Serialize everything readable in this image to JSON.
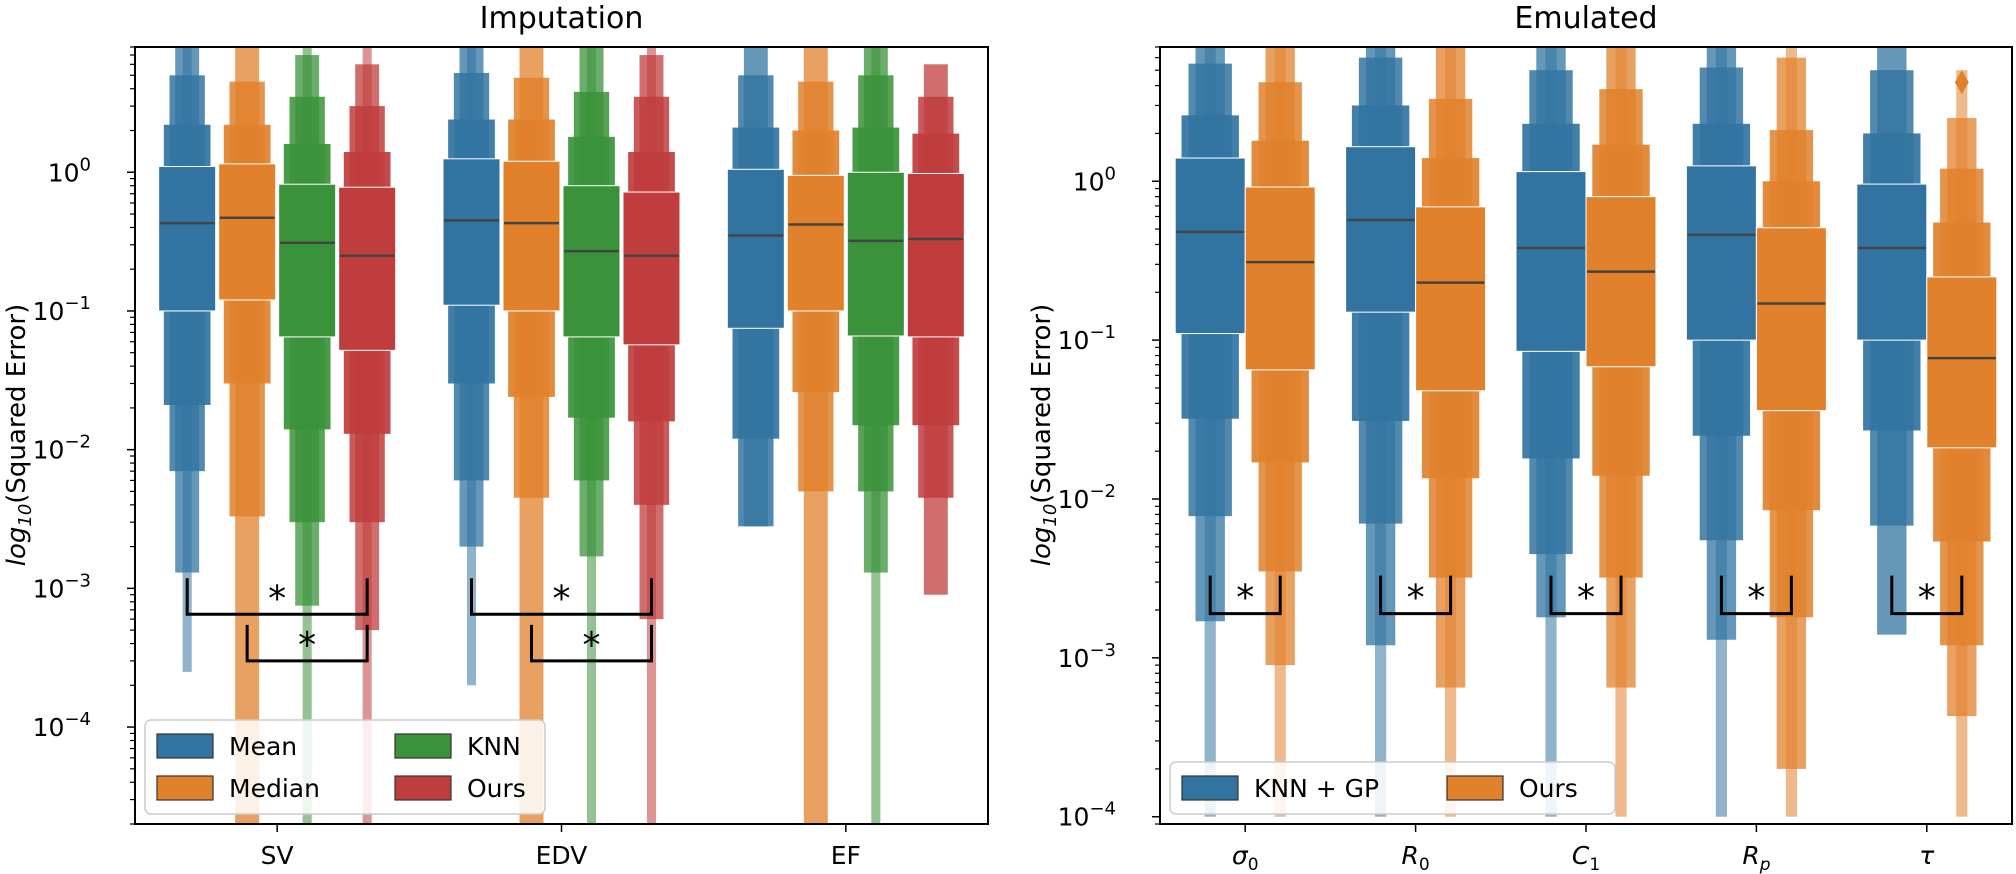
{
  "chart_data": [
    {
      "type": "boxen",
      "title": "Imputation",
      "ylabel": "log10(Squared Error)",
      "yscale": "log",
      "ylim": [
        2e-05,
        8
      ],
      "yticks": [
        {
          "value": 1,
          "exp": "0"
        },
        {
          "value": 0.1,
          "exp": "−1"
        },
        {
          "value": 0.01,
          "exp": "−2"
        },
        {
          "value": 0.001,
          "exp": "−3"
        },
        {
          "value": 0.0001,
          "exp": "−4"
        }
      ],
      "categories": [
        "SV",
        "EDV",
        "EF"
      ],
      "series": [
        {
          "name": "Mean",
          "color": "#3274a1",
          "boxes": [
            {
              "median": 0.43,
              "levels": [
                [
                  0.1,
                  1.1
                ],
                [
                  0.021,
                  2.2
                ],
                [
                  0.007,
                  5.0
                ],
                [
                  0.0013,
                  10
                ],
                [
                  0.00025,
                  10
                ]
              ]
            },
            {
              "median": 0.45,
              "levels": [
                [
                  0.11,
                  1.25
                ],
                [
                  0.03,
                  2.4
                ],
                [
                  0.006,
                  5.2
                ],
                [
                  0.002,
                  10
                ],
                [
                  0.0002,
                  10
                ]
              ]
            },
            {
              "median": 0.35,
              "levels": [
                [
                  0.075,
                  1.05
                ],
                [
                  0.012,
                  2.1
                ],
                [
                  0.0028,
                  5.0
                ],
                [
                  0.0028,
                  10
                ]
              ]
            }
          ]
        },
        {
          "name": "Median",
          "color": "#e1812c",
          "boxes": [
            {
              "median": 0.47,
              "levels": [
                [
                  0.12,
                  1.15
                ],
                [
                  0.03,
                  2.2
                ],
                [
                  0.0033,
                  4.5
                ],
                [
                  2e-05,
                  10
                ]
              ]
            },
            {
              "median": 0.43,
              "levels": [
                [
                  0.1,
                  1.2
                ],
                [
                  0.024,
                  2.4
                ],
                [
                  0.0045,
                  4.8
                ],
                [
                  2e-05,
                  10
                ]
              ]
            },
            {
              "median": 0.42,
              "levels": [
                [
                  0.1,
                  0.95
                ],
                [
                  0.026,
                  2.0
                ],
                [
                  0.005,
                  4.5
                ],
                [
                  2e-05,
                  10
                ]
              ]
            }
          ]
        },
        {
          "name": "KNN",
          "color": "#3a923a",
          "boxes": [
            {
              "median": 0.31,
              "levels": [
                [
                  0.065,
                  0.82
                ],
                [
                  0.014,
                  1.6
                ],
                [
                  0.003,
                  3.5
                ],
                [
                  0.00075,
                  7
                ],
                [
                  2e-05,
                  10
                ]
              ]
            },
            {
              "median": 0.27,
              "levels": [
                [
                  0.065,
                  0.8
                ],
                [
                  0.017,
                  1.8
                ],
                [
                  0.006,
                  3.8
                ],
                [
                  0.0017,
                  8
                ],
                [
                  2e-05,
                  10
                ]
              ]
            },
            {
              "median": 0.32,
              "levels": [
                [
                  0.066,
                  1.0
                ],
                [
                  0.015,
                  2.1
                ],
                [
                  0.005,
                  5.0
                ],
                [
                  0.0013,
                  10
                ],
                [
                  2e-05,
                  10
                ]
              ]
            }
          ]
        },
        {
          "name": "Ours",
          "color": "#c03d3e",
          "boxes": [
            {
              "median": 0.25,
              "levels": [
                [
                  0.052,
                  0.78
                ],
                [
                  0.013,
                  1.4
                ],
                [
                  0.003,
                  3.0
                ],
                [
                  0.0005,
                  6
                ],
                [
                  2e-05,
                  10
                ]
              ]
            },
            {
              "median": 0.25,
              "levels": [
                [
                  0.057,
                  0.72
                ],
                [
                  0.016,
                  1.4
                ],
                [
                  0.004,
                  3.5
                ],
                [
                  0.0006,
                  7
                ],
                [
                  2e-05,
                  10
                ]
              ]
            },
            {
              "median": 0.33,
              "levels": [
                [
                  0.065,
                  0.98
                ],
                [
                  0.015,
                  1.9
                ],
                [
                  0.0045,
                  3.5
                ],
                [
                  0.0009,
                  6
                ]
              ]
            }
          ]
        }
      ],
      "legend": {
        "position": "lower-left",
        "ncol": 2,
        "order": [
          "Mean",
          "KNN",
          "Median",
          "Ours"
        ]
      },
      "annotations": [
        {
          "text": "*",
          "category": "SV",
          "from": "Mean",
          "to": "Ours",
          "y": 0.00065
        },
        {
          "text": "*",
          "category": "SV",
          "from": "Median",
          "to": "Ours",
          "y": 0.0003
        },
        {
          "text": "*",
          "category": "EDV",
          "from": "Mean",
          "to": "Ours",
          "y": 0.00065
        },
        {
          "text": "*",
          "category": "EDV",
          "from": "Median",
          "to": "Ours",
          "y": 0.0003
        }
      ]
    },
    {
      "type": "boxen",
      "title": "Emulated",
      "ylabel": "log10(Squared Error)",
      "yscale": "log",
      "ylim": [
        9e-05,
        7
      ],
      "yticks": [
        {
          "value": 1,
          "exp": "0"
        },
        {
          "value": 0.1,
          "exp": "−1"
        },
        {
          "value": 0.01,
          "exp": "−2"
        },
        {
          "value": 0.001,
          "exp": "−3"
        },
        {
          "value": 0.0001,
          "exp": "−4"
        }
      ],
      "categories": [
        {
          "base": "σ",
          "sub": "0"
        },
        {
          "base": "R",
          "sub": "0"
        },
        {
          "base": "C",
          "sub": "1"
        },
        {
          "base": "R",
          "sub": "p"
        },
        {
          "base": "τ",
          "sub": ""
        }
      ],
      "series": [
        {
          "name": "KNN + GP",
          "color": "#3274a1",
          "boxes": [
            {
              "median": 0.48,
              "levels": [
                [
                  0.11,
                  1.4
                ],
                [
                  0.032,
                  2.6
                ],
                [
                  0.0078,
                  5.5
                ],
                [
                  0.0017,
                  10
                ],
                [
                  0.0001,
                  10
                ]
              ]
            },
            {
              "median": 0.57,
              "levels": [
                [
                  0.15,
                  1.65
                ],
                [
                  0.031,
                  3.0
                ],
                [
                  0.007,
                  6.0
                ],
                [
                  0.0012,
                  10
                ],
                [
                  0.0001,
                  10
                ]
              ]
            },
            {
              "median": 0.38,
              "levels": [
                [
                  0.085,
                  1.15
                ],
                [
                  0.018,
                  2.3
                ],
                [
                  0.0045,
                  5.0
                ],
                [
                  0.0018,
                  10
                ],
                [
                  0.0001,
                  10
                ]
              ]
            },
            {
              "median": 0.46,
              "levels": [
                [
                  0.1,
                  1.25
                ],
                [
                  0.025,
                  2.3
                ],
                [
                  0.0055,
                  5.2
                ],
                [
                  0.0013,
                  10
                ],
                [
                  0.0001,
                  10
                ]
              ]
            },
            {
              "median": 0.38,
              "levels": [
                [
                  0.1,
                  0.96
                ],
                [
                  0.027,
                  2.0
                ],
                [
                  0.0068,
                  5.0
                ],
                [
                  0.0014,
                  10
                ]
              ]
            }
          ]
        },
        {
          "name": "Ours",
          "color": "#e1812c",
          "boxes": [
            {
              "median": 0.31,
              "levels": [
                [
                  0.065,
                  0.92
                ],
                [
                  0.017,
                  1.8
                ],
                [
                  0.0035,
                  4.2
                ],
                [
                  0.0009,
                  10
                ],
                [
                  0.0001,
                  10
                ]
              ]
            },
            {
              "median": 0.23,
              "levels": [
                [
                  0.048,
                  0.69
                ],
                [
                  0.0135,
                  1.4
                ],
                [
                  0.0032,
                  3.3
                ],
                [
                  0.00065,
                  8
                ],
                [
                  0.0001,
                  10
                ]
              ]
            },
            {
              "median": 0.27,
              "levels": [
                [
                  0.068,
                  0.8
                ],
                [
                  0.014,
                  1.7
                ],
                [
                  0.0032,
                  3.8
                ],
                [
                  0.00065,
                  8
                ],
                [
                  0.0001,
                  10
                ]
              ]
            },
            {
              "median": 0.17,
              "levels": [
                [
                  0.036,
                  0.51
                ],
                [
                  0.0085,
                  1.0
                ],
                [
                  0.0018,
                  2.1
                ],
                [
                  0.0002,
                  6
                ],
                [
                  0.0001,
                  10
                ]
              ]
            },
            {
              "median": 0.077,
              "levels": [
                [
                  0.021,
                  0.25
                ],
                [
                  0.0054,
                  0.55
                ],
                [
                  0.0012,
                  1.2
                ],
                [
                  0.00043,
                  2.5
                ],
                [
                  0.0001,
                  5
                ]
              ]
            }
          ]
        }
      ],
      "outliers": [
        {
          "category_index": 4,
          "series": "Ours",
          "y": 4.2
        }
      ],
      "legend": {
        "position": "lower-left",
        "ncol": 2,
        "order": [
          "KNN + GP",
          "Ours"
        ]
      },
      "annotations": [
        {
          "text": "*",
          "category_index": 0,
          "y": 0.0019
        },
        {
          "text": "*",
          "category_index": 1,
          "y": 0.0019
        },
        {
          "text": "*",
          "category_index": 2,
          "y": 0.0019
        },
        {
          "text": "*",
          "category_index": 3,
          "y": 0.0019
        },
        {
          "text": "*",
          "category_index": 4,
          "y": 0.0019
        }
      ]
    }
  ]
}
